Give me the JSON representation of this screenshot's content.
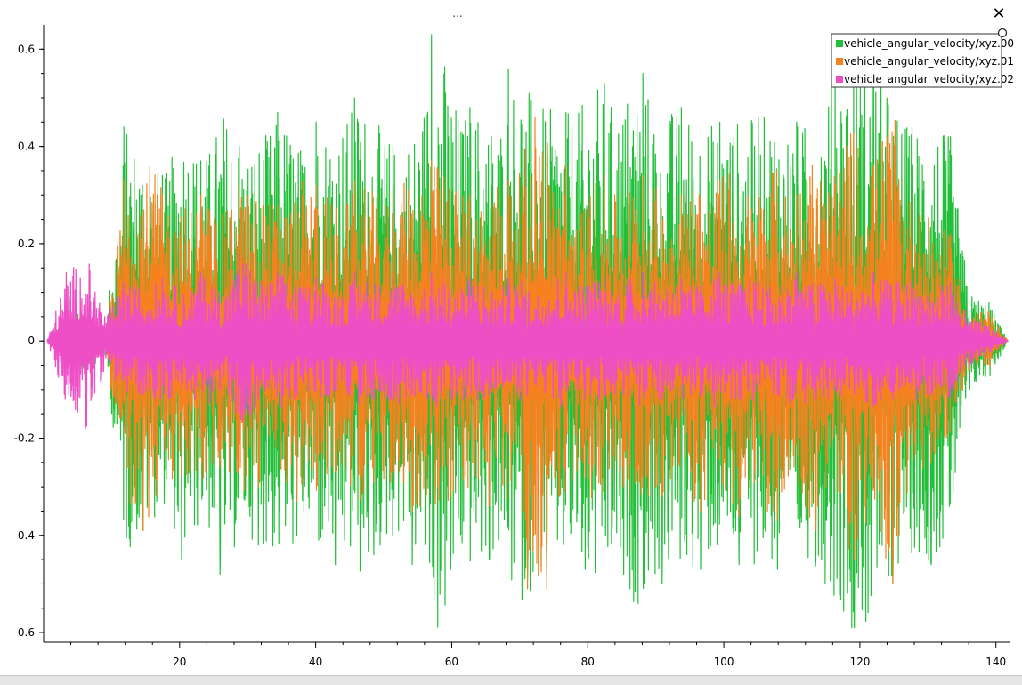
{
  "window": {
    "title_dots": "...",
    "close_glyph": "✕"
  },
  "chart_data": {
    "type": "line",
    "title": "",
    "xlabel": "",
    "ylabel": "",
    "xlim": [
      0,
      142
    ],
    "ylim": [
      -0.62,
      0.65
    ],
    "xticks": [
      20,
      40,
      60,
      80,
      100,
      120,
      140
    ],
    "yticks": [
      -0.6,
      -0.4,
      -0.2,
      0,
      0.2,
      0.4,
      0.6
    ],
    "ytick_labels": [
      "-0.6",
      "-0.4",
      "-0.2",
      "0",
      "0.2",
      "0.4",
      "0.6"
    ],
    "grid": false,
    "legend_position": "top-right",
    "series": [
      {
        "name": "vehicle_angular_velocity/xyz.00",
        "color": "#22c03a",
        "values": [
          0,
          0.05,
          -0.07,
          0.03,
          0.44,
          -0.39,
          0.34,
          -0.45,
          0.37,
          -0.48,
          0.4,
          -0.42,
          0.47,
          -0.4,
          0.45,
          -0.46,
          0.5,
          -0.44,
          0.4,
          -0.46,
          0.63,
          -0.47,
          0.48,
          -0.45,
          0.56,
          -0.49,
          0.47,
          -0.47,
          0.53,
          -0.48,
          0.55,
          -0.5,
          0.48,
          -0.47,
          0.45,
          -0.46,
          0.46,
          -0.47,
          0.45,
          -0.45,
          0.53,
          -0.59,
          0.61,
          -0.5,
          0.44,
          -0.46,
          0.42,
          -0.1,
          0.08,
          0
        ]
      },
      {
        "name": "vehicle_angular_velocity/xyz.01",
        "color": "#f5821f",
        "values": [
          0,
          0.03,
          -0.04,
          0.02,
          0.33,
          -0.39,
          0.3,
          -0.28,
          0.3,
          -0.26,
          0.32,
          -0.3,
          0.28,
          -0.33,
          0.32,
          -0.27,
          0.33,
          -0.29,
          0.32,
          -0.35,
          0.37,
          -0.32,
          0.3,
          -0.34,
          0.33,
          -0.51,
          0.36,
          -0.28,
          0.34,
          -0.3,
          0.34,
          -0.32,
          0.3,
          -0.35,
          0.33,
          -0.36,
          0.3,
          -0.37,
          0.3,
          -0.39,
          0.32,
          -0.45,
          0.36,
          -0.5,
          0.3,
          -0.25,
          0.22,
          -0.06,
          0.06,
          0
        ]
      },
      {
        "name": "vehicle_angular_velocity/xyz.02",
        "color": "#ee4fc6",
        "values": [
          0,
          0.14,
          -0.18,
          0.05,
          0.12,
          -0.11,
          0.13,
          -0.1,
          0.14,
          -0.1,
          0.18,
          -0.12,
          0.14,
          -0.11,
          0.13,
          -0.1,
          0.14,
          -0.12,
          0.13,
          -0.11,
          0.14,
          -0.12,
          0.13,
          -0.11,
          0.13,
          -0.1,
          0.14,
          -0.12,
          0.13,
          -0.11,
          0.14,
          -0.12,
          0.13,
          -0.11,
          0.14,
          -0.12,
          0.13,
          -0.11,
          0.14,
          -0.12,
          0.13,
          -0.11,
          0.14,
          -0.12,
          0.13,
          -0.11,
          0.12,
          -0.05,
          0.03,
          0
        ]
      }
    ]
  }
}
